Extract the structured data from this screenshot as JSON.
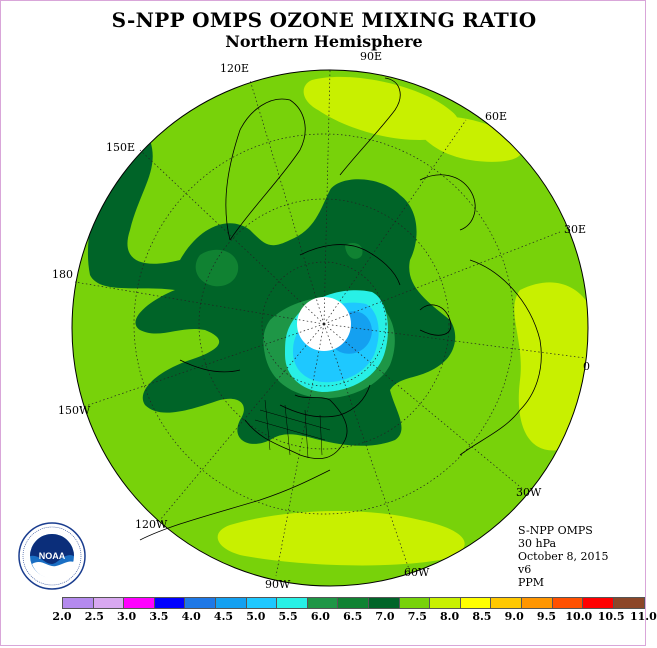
{
  "title": "S-NPP OMPS OZONE MIXING RATIO",
  "subtitle": "Northern Hemisphere",
  "longitude_labels": [
    "90E",
    "60E",
    "30E",
    "0",
    "30W",
    "60W",
    "90W",
    "120W",
    "150W",
    "180",
    "150E",
    "120E"
  ],
  "info": {
    "instrument": "S-NPP OMPS",
    "level": "30 hPa",
    "date": "October 8, 2015",
    "version": "v6",
    "units": "PPM"
  },
  "logo": {
    "text": "NOAA"
  },
  "colorbar": {
    "ticks": [
      "2.0",
      "2.5",
      "3.0",
      "3.5",
      "4.0",
      "4.5",
      "5.0",
      "5.5",
      "6.0",
      "6.5",
      "7.0",
      "7.5",
      "8.0",
      "8.5",
      "9.0",
      "9.5",
      "10.0",
      "10.5",
      "11.0"
    ],
    "colors": [
      "#b48aee",
      "#d8a8f0",
      "#ff00ff",
      "#0000ff",
      "#1e78e6",
      "#14a0f0",
      "#1ec8ff",
      "#28f0e6",
      "#1e9646",
      "#108232",
      "#006428",
      "#78d20a",
      "#c8f000",
      "#ffff00",
      "#ffc800",
      "#ff9600",
      "#ff5000",
      "#ff0000",
      "#8c4628"
    ]
  }
}
